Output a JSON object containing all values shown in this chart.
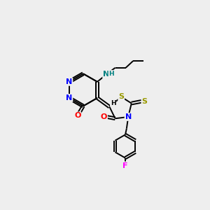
{
  "background_color": "#eeeeee",
  "N_color": "#0000FF",
  "O_color": "#FF0000",
  "S_color": "#999900",
  "F_color": "#FF00FF",
  "NH_color": "#008080",
  "C_color": "#000000",
  "lw": 1.4,
  "fs": 8.0,
  "xlim": [
    0,
    10
  ],
  "ylim": [
    0,
    10
  ]
}
